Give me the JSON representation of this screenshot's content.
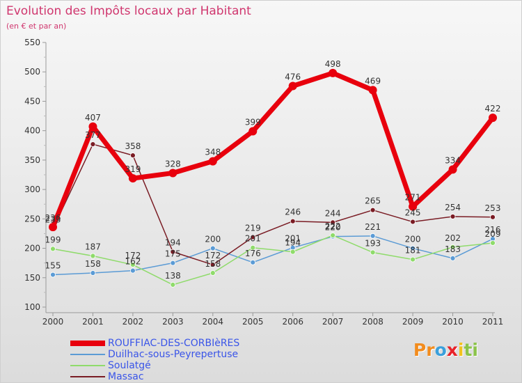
{
  "header": {
    "title": "Evolution des Impôts locaux par Habitant",
    "subtitle": "(en € et par an)"
  },
  "chart_data": {
    "type": "line",
    "title": "Evolution des Impôts locaux par Habitant",
    "subtitle": "(en € et par an)",
    "xlabel": "",
    "ylabel": "",
    "categories": [
      "2000",
      "2001",
      "2002",
      "2003",
      "2004",
      "2005",
      "2006",
      "2007",
      "2008",
      "2009",
      "2010",
      "2011"
    ],
    "ylim": [
      100,
      550
    ],
    "yticks": [
      100,
      150,
      200,
      250,
      300,
      350,
      400,
      450,
      500,
      550
    ],
    "grid": false,
    "legend_position": "bottom-left",
    "series": [
      {
        "name": "ROUFFIAC-DES-CORBIèRES",
        "color": "#e8000d",
        "values": [
          236,
          407,
          319,
          328,
          348,
          399,
          476,
          498,
          469,
          271,
          334,
          422
        ]
      },
      {
        "name": "Duilhac-sous-Peyrepertuse",
        "color": "#5b9bd5",
        "values": [
          155,
          158,
          162,
          175,
          200,
          176,
          201,
          220,
          221,
          200,
          183,
          216
        ]
      },
      {
        "name": "Soulatgé",
        "color": "#8fdb6b",
        "values": [
          199,
          187,
          172,
          138,
          158,
          201,
          194,
          222,
          193,
          181,
          202,
          209
        ]
      },
      {
        "name": "Massac",
        "color": "#7a1c24",
        "values": [
          233,
          377,
          358,
          194,
          172,
          219,
          246,
          244,
          265,
          245,
          254,
          253
        ]
      }
    ]
  },
  "legend": {
    "items": [
      {
        "label": "ROUFFIAC-DES-CORBIèRES",
        "color": "#e8000d",
        "text_color": "#3a55e8"
      },
      {
        "label": "Duilhac-sous-Peyrepertuse",
        "color": "#5b9bd5",
        "text_color": "#3a55e8"
      },
      {
        "label": "Soulatgé",
        "color": "#8fdb6b",
        "text_color": "#3a55e8"
      },
      {
        "label": "Massac",
        "color": "#7a1c24",
        "text_color": "#3a55e8"
      }
    ]
  },
  "logo": {
    "letters": [
      "P",
      "r",
      "o",
      "x",
      "i",
      "t",
      "i"
    ],
    "colors": [
      "#f28c1e",
      "#f28c1e",
      "#3aa0dc",
      "#e8232a",
      "#f2c21e",
      "#8bc34a",
      "#8bc34a"
    ]
  }
}
